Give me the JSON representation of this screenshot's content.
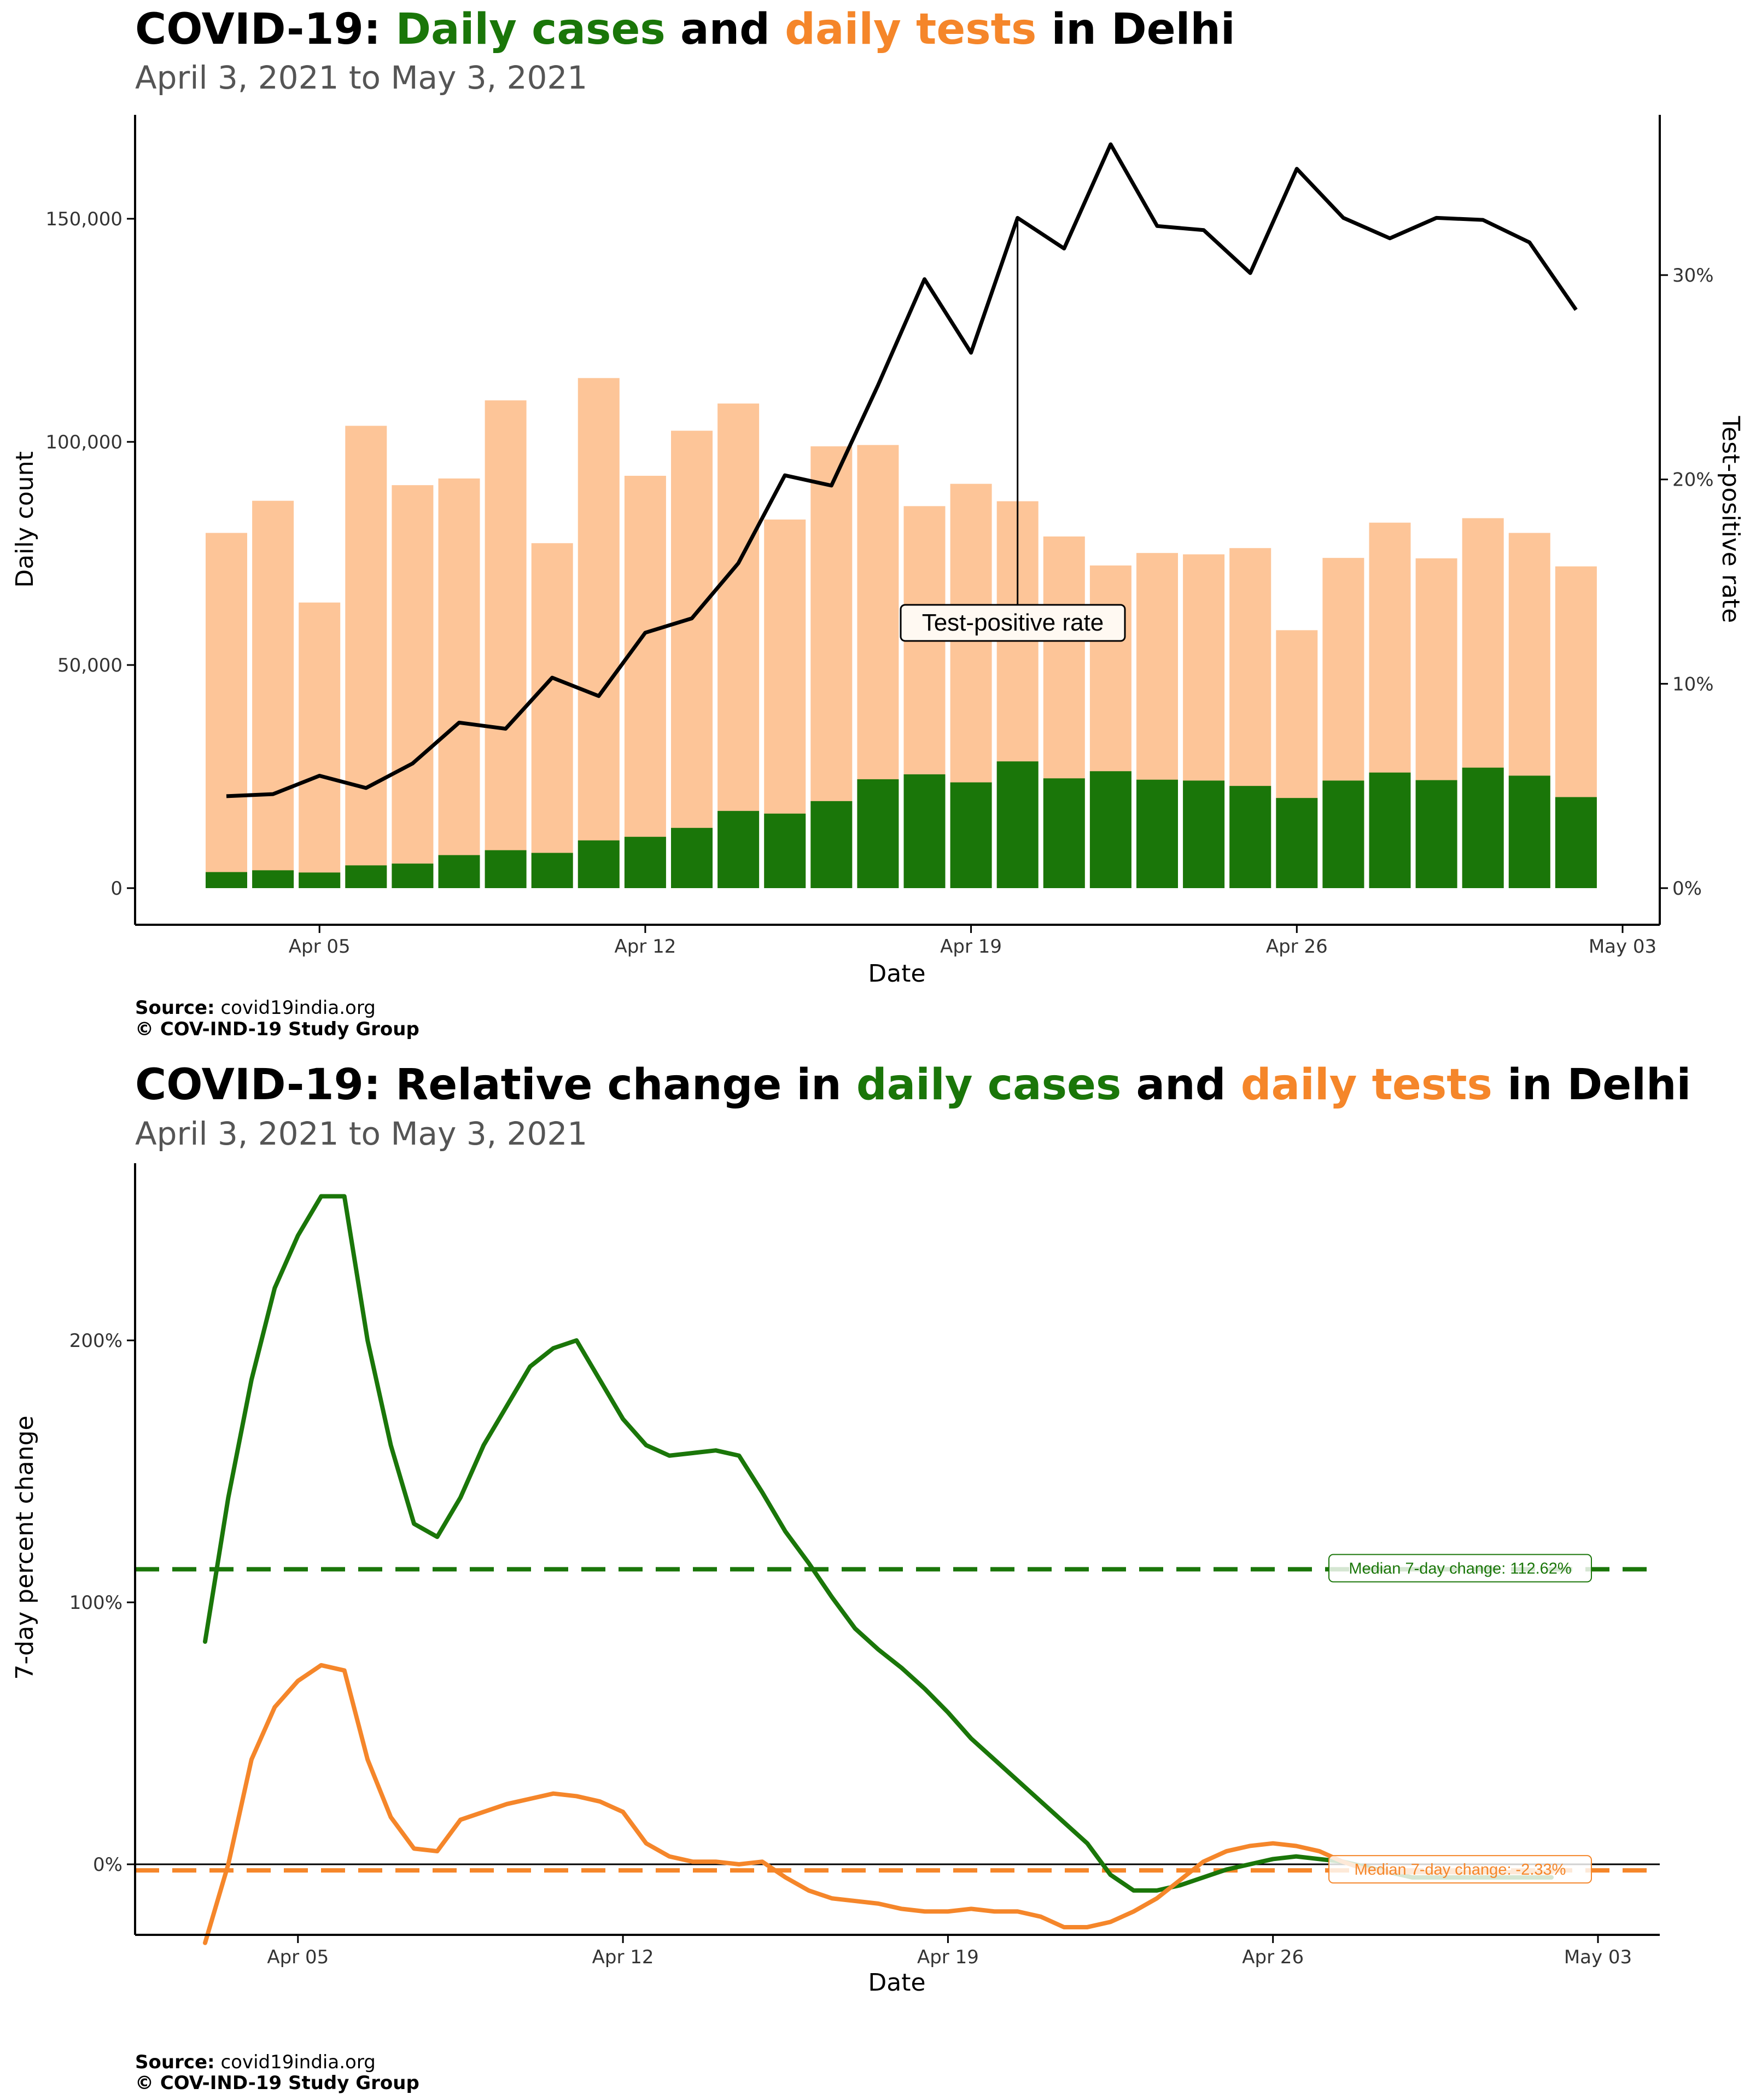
{
  "chart_data": [
    {
      "type": "bar",
      "title_parts": [
        {
          "text": "COVID-19: ",
          "color": "#000000"
        },
        {
          "text": "Daily cases",
          "color": "#1a7609"
        },
        {
          "text": " and ",
          "color": "#000000"
        },
        {
          "text": "daily tests",
          "color": "#f5862a"
        },
        {
          "text": " in Delhi",
          "color": "#000000"
        }
      ],
      "subtitle": "April  3, 2021 to May  3, 2021",
      "xlabel": "Date",
      "ylabel": "Daily count",
      "y2label": "Test-positive rate",
      "xticks": [
        "Apr 05",
        "Apr 12",
        "Apr 19",
        "Apr 26",
        "May 03"
      ],
      "yticks": [
        "0",
        "50,000",
        "100,000",
        "150,000"
      ],
      "y2ticks": [
        "0%",
        "10%",
        "20%",
        "30%"
      ],
      "ylim": [
        0,
        170000
      ],
      "y2lim": [
        0,
        0.37
      ],
      "colors": {
        "tests": "#fdc598",
        "cases": "#1a7609",
        "rate": "#000000"
      },
      "dates": [
        "Apr 03",
        "Apr 04",
        "Apr 05",
        "Apr 06",
        "Apr 07",
        "Apr 08",
        "Apr 09",
        "Apr 10",
        "Apr 11",
        "Apr 12",
        "Apr 13",
        "Apr 14",
        "Apr 15",
        "Apr 16",
        "Apr 17",
        "Apr 18",
        "Apr 19",
        "Apr 20",
        "Apr 21",
        "Apr 22",
        "Apr 23",
        "Apr 24",
        "Apr 25",
        "Apr 26",
        "Apr 27",
        "Apr 28",
        "Apr 29",
        "Apr 30",
        "May 01",
        "May 02"
      ],
      "series": [
        {
          "name": "daily tests",
          "values": [
            79600,
            86800,
            64000,
            103600,
            90300,
            91800,
            109300,
            77300,
            114300,
            92400,
            102500,
            108600,
            82600,
            99000,
            99300,
            85600,
            90600,
            86700,
            78800,
            72300,
            75100,
            74800,
            76200,
            57800,
            74000,
            81900,
            73900,
            82900,
            79600,
            72100
          ]
        },
        {
          "name": "daily cases",
          "values": [
            3600,
            4000,
            3500,
            5100,
            5500,
            7400,
            8500,
            7900,
            10700,
            11500,
            13500,
            17300,
            16700,
            19500,
            24400,
            25500,
            23700,
            28400,
            24600,
            26200,
            24300,
            24100,
            22900,
            20200,
            24100,
            25900,
            24200,
            27000,
            25200,
            20400
          ]
        },
        {
          "name": "Test-positive rate",
          "values": [
            0.045,
            0.046,
            0.055,
            0.049,
            0.061,
            0.081,
            0.078,
            0.103,
            0.094,
            0.125,
            0.132,
            0.159,
            0.202,
            0.197,
            0.246,
            0.298,
            0.262,
            0.328,
            0.313,
            0.364,
            0.324,
            0.322,
            0.301,
            0.352,
            0.328,
            0.318,
            0.328,
            0.327,
            0.316,
            0.283
          ]
        }
      ],
      "annotation": "Test-positive rate",
      "annotation_date": "Apr 20",
      "caption_source_label": "Source:",
      "caption_source": " covid19india.org",
      "caption_copyright": "© COV-IND-19 Study Group"
    },
    {
      "type": "line",
      "title_parts": [
        {
          "text": "COVID-19: Relative change in ",
          "color": "#000000"
        },
        {
          "text": "daily cases",
          "color": "#1a7609"
        },
        {
          "text": " and ",
          "color": "#000000"
        },
        {
          "text": "daily tests",
          "color": "#f5862a"
        },
        {
          "text": " in Delhi",
          "color": "#000000"
        }
      ],
      "subtitle": "April  3, 2021 to May  3, 2021",
      "xlabel": "Date",
      "ylabel": "7-day percent change",
      "xticks": [
        "Apr 05",
        "Apr 12",
        "Apr 19",
        "Apr 26",
        "May 03"
      ],
      "yticks": [
        "0%",
        "100%",
        "200%"
      ],
      "ylim": [
        -25,
        260
      ],
      "xrange_days": [
        0,
        29
      ],
      "colors": {
        "cases": "#1a7609",
        "tests": "#f5862a"
      },
      "series": [
        {
          "name": "daily cases",
          "x": [
            0,
            0.5,
            1,
            1.5,
            2,
            2.5,
            3,
            3.5,
            4,
            4.5,
            5,
            5.5,
            6,
            6.5,
            7,
            7.5,
            8,
            8.5,
            9,
            9.5,
            10,
            10.5,
            11,
            11.5,
            12,
            12.5,
            13,
            13.5,
            14,
            14.5,
            15,
            15.5,
            16,
            16.5,
            17,
            17.5,
            18,
            18.5,
            19,
            19.5,
            20,
            20.5,
            21,
            21.5,
            22,
            22.5,
            23,
            23.5,
            24,
            24.5,
            25,
            25.5,
            26,
            26.5,
            27,
            27.5,
            28,
            28.5,
            29
          ],
          "values": [
            85,
            140,
            185,
            220,
            240,
            255,
            255,
            200,
            160,
            130,
            125,
            140,
            160,
            175,
            190,
            197,
            200,
            185,
            170,
            160,
            156,
            157,
            158,
            156,
            142,
            127,
            115,
            102,
            90,
            82,
            75,
            67,
            58,
            48,
            40,
            32,
            24,
            16,
            8,
            -4,
            -10,
            -10,
            -8,
            -5,
            -2,
            0,
            2,
            3,
            2,
            1,
            -1,
            -3,
            -5,
            -5,
            -5,
            -5,
            -5,
            -5,
            -5
          ],
          "median_label": "Median 7-day change: 112.62%",
          "median": 112.62
        },
        {
          "name": "daily tests",
          "x": [
            0,
            0.5,
            1,
            1.5,
            2,
            2.5,
            3,
            3.5,
            4,
            4.5,
            5,
            5.5,
            6,
            6.5,
            7,
            7.5,
            8,
            8.5,
            9,
            9.5,
            10,
            10.5,
            11,
            11.5,
            12,
            12.5,
            13,
            13.5,
            14,
            14.5,
            15,
            15.5,
            16,
            16.5,
            17,
            17.5,
            18,
            18.5,
            19,
            19.5,
            20,
            20.5,
            21,
            21.5,
            22,
            22.5,
            23,
            23.5,
            24,
            24.5,
            25,
            25.5,
            26,
            26.5,
            27,
            27.5,
            28,
            28.5,
            29
          ],
          "values": [
            -30,
            0,
            40,
            60,
            70,
            76,
            74,
            40,
            18,
            6,
            5,
            17,
            20,
            23,
            25,
            27,
            26,
            24,
            20,
            8,
            3,
            1,
            1,
            0,
            1,
            -5,
            -10,
            -13,
            -14,
            -15,
            -17,
            -18,
            -18,
            -17,
            -18,
            -18,
            -20,
            -24,
            -24,
            -22,
            -18,
            -13,
            -6,
            1,
            5,
            7,
            8,
            7,
            5,
            1,
            -2,
            -3,
            -3,
            -3,
            -3,
            -3,
            -3,
            -3,
            -3
          ],
          "median_label": "Median 7-day change: -2.33%",
          "median": -2.33
        }
      ],
      "caption_source_label": "Source:",
      "caption_source": " covid19india.org",
      "caption_copyright": "© COV-IND-19 Study Group"
    }
  ]
}
